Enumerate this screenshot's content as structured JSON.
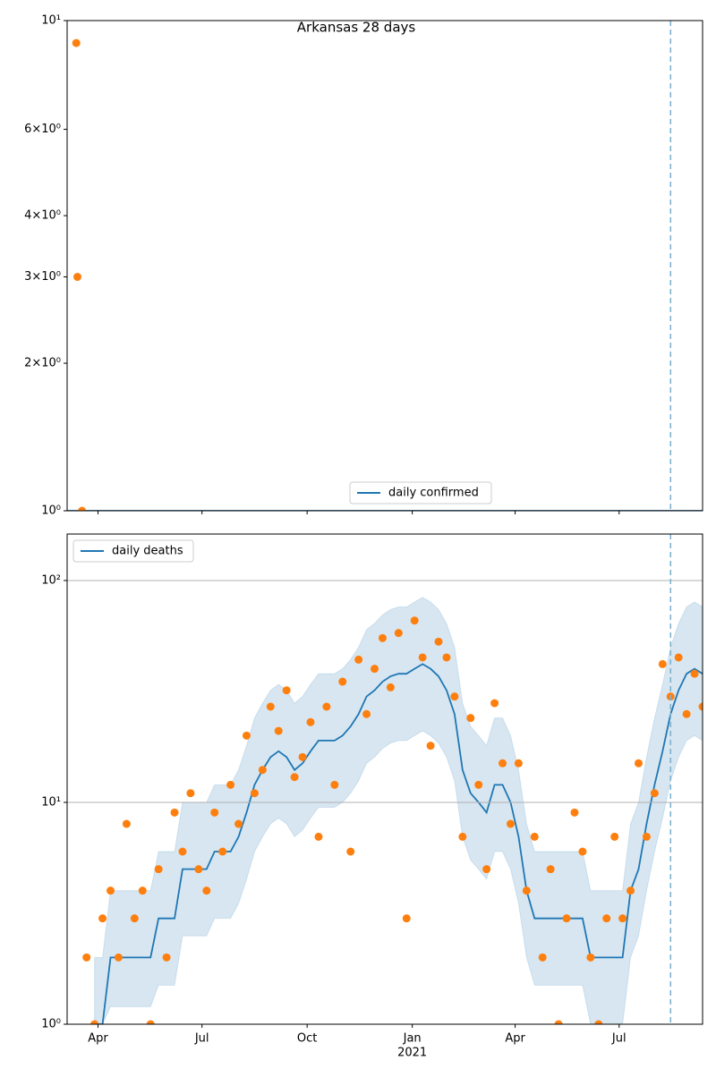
{
  "chart_data": [
    {
      "type": "scatter",
      "title": "Arkansas 28 days",
      "log_y": true,
      "grid": false,
      "legend": "lower center",
      "ylim": [
        1,
        10
      ],
      "yticks": [
        {
          "value": 1,
          "label": "10⁰"
        },
        {
          "value": 2,
          "label": "2×10⁰"
        },
        {
          "value": 3,
          "label": "3×10⁰"
        },
        {
          "value": 4,
          "label": "4×10⁰"
        },
        {
          "value": 6,
          "label": "6×10⁰"
        },
        {
          "value": 10,
          "label": "10¹"
        }
      ],
      "vline": "2021-08-15",
      "series": [
        {
          "name": "daily confirmed",
          "kind": "line",
          "color": "#1f77b4",
          "x": [
            "2020-03-05",
            "2021-09-12"
          ],
          "values": [
            1,
            1
          ]
        },
        {
          "kind": "scatter",
          "color": "#ff7f0e",
          "x": [
            "2020-03-13",
            "2020-03-14",
            "2020-03-18"
          ],
          "values": [
            9,
            3,
            1
          ]
        }
      ]
    },
    {
      "type": "scatter",
      "log_y": true,
      "grid": true,
      "legend": "upper left",
      "xlim": [
        "2020-03-05",
        "2021-09-12"
      ],
      "xticks": [
        {
          "value": "2020-04-01",
          "label": "Apr"
        },
        {
          "value": "2020-07-01",
          "label": "Jul"
        },
        {
          "value": "2020-10-01",
          "label": "Oct"
        },
        {
          "value": "2021-01-01",
          "label": "Jan"
        },
        {
          "value": "2021-04-01",
          "label": "Apr"
        },
        {
          "value": "2021-07-01",
          "label": "Jul"
        }
      ],
      "x_year_label": "2021",
      "ylim": [
        1,
        162
      ],
      "yticks": [
        {
          "value": 1,
          "label": "10⁰"
        },
        {
          "value": 10,
          "label": "10¹"
        },
        {
          "value": 100,
          "label": "10²"
        }
      ],
      "vline": "2021-08-15",
      "x": [
        "2020-03-22",
        "2020-03-29",
        "2020-04-05",
        "2020-04-12",
        "2020-04-19",
        "2020-04-26",
        "2020-05-03",
        "2020-05-10",
        "2020-05-17",
        "2020-05-24",
        "2020-05-31",
        "2020-06-07",
        "2020-06-14",
        "2020-06-21",
        "2020-06-28",
        "2020-07-05",
        "2020-07-12",
        "2020-07-19",
        "2020-07-26",
        "2020-08-02",
        "2020-08-09",
        "2020-08-16",
        "2020-08-23",
        "2020-08-30",
        "2020-09-06",
        "2020-09-13",
        "2020-09-20",
        "2020-09-27",
        "2020-10-04",
        "2020-10-11",
        "2020-10-18",
        "2020-10-25",
        "2020-11-01",
        "2020-11-08",
        "2020-11-15",
        "2020-11-22",
        "2020-11-29",
        "2020-12-06",
        "2020-12-13",
        "2020-12-20",
        "2020-12-27",
        "2021-01-03",
        "2021-01-10",
        "2021-01-17",
        "2021-01-24",
        "2021-01-31",
        "2021-02-07",
        "2021-02-14",
        "2021-02-21",
        "2021-02-28",
        "2021-03-07",
        "2021-03-14",
        "2021-03-21",
        "2021-03-28",
        "2021-04-04",
        "2021-04-11",
        "2021-04-18",
        "2021-04-25",
        "2021-05-02",
        "2021-05-09",
        "2021-05-16",
        "2021-05-23",
        "2021-05-30",
        "2021-06-06",
        "2021-06-13",
        "2021-06-20",
        "2021-06-27",
        "2021-07-04",
        "2021-07-11",
        "2021-07-18",
        "2021-07-25",
        "2021-08-01",
        "2021-08-08",
        "2021-08-15",
        "2021-08-22",
        "2021-08-29",
        "2021-09-05",
        "2021-09-12"
      ],
      "band": {
        "color": "#1f77b4",
        "low": [
          null,
          1,
          1,
          1.2,
          1.2,
          1.2,
          1.2,
          1.2,
          1.2,
          1.5,
          1.5,
          1.5,
          2.5,
          2.5,
          2.5,
          2.5,
          3,
          3,
          3,
          3.5,
          4.5,
          6,
          7,
          8,
          8.5,
          8,
          7,
          7.5,
          8.5,
          9.5,
          9.5,
          9.5,
          10,
          11,
          12.5,
          15,
          16,
          17.5,
          18.5,
          19,
          19,
          20,
          21,
          20,
          18.5,
          16,
          12.5,
          7,
          5.5,
          5,
          4.5,
          6,
          6,
          5,
          3.5,
          2,
          1.5,
          1.5,
          1.5,
          1.5,
          1.5,
          1.5,
          1.5,
          1,
          1,
          1,
          1,
          1,
          2,
          2.5,
          4,
          6,
          8.5,
          12.5,
          16,
          19,
          20,
          19
        ],
        "high": [
          null,
          2,
          2,
          4,
          4,
          4,
          4,
          4,
          4,
          6,
          6,
          6,
          10,
          10,
          10,
          10,
          12,
          12,
          12,
          14,
          18,
          24,
          28,
          32,
          34,
          32,
          28,
          30,
          34,
          38,
          38,
          38,
          40,
          44,
          50,
          60,
          64,
          70,
          74,
          76,
          76,
          80,
          84,
          80,
          74,
          64,
          50,
          28,
          22,
          20,
          18,
          24,
          24,
          20,
          14,
          8,
          6,
          6,
          6,
          6,
          6,
          6,
          6,
          4,
          4,
          4,
          4,
          4,
          8,
          10,
          16,
          24,
          34,
          50,
          64,
          76,
          80,
          76
        ]
      },
      "series": [
        {
          "name": "daily deaths",
          "kind": "line",
          "color": "#1f77b4",
          "values": [
            null,
            1,
            1,
            2,
            2,
            2,
            2,
            2,
            2,
            3,
            3,
            3,
            5,
            5,
            5,
            5,
            6,
            6,
            6,
            7,
            9,
            12,
            14,
            16,
            17,
            16,
            14,
            15,
            17,
            19,
            19,
            19,
            20,
            22,
            25,
            30,
            32,
            35,
            37,
            38,
            38,
            40,
            42,
            40,
            37,
            32,
            25,
            14,
            11,
            10,
            9,
            12,
            12,
            10,
            7,
            4,
            3,
            3,
            3,
            3,
            3,
            3,
            3,
            2,
            2,
            2,
            2,
            2,
            4,
            5,
            8,
            12,
            17,
            25,
            32,
            38,
            40,
            38
          ]
        },
        {
          "kind": "scatter",
          "color": "#ff7f0e",
          "values": [
            2,
            1,
            3,
            4,
            2,
            8,
            3,
            4,
            1,
            5,
            2,
            9,
            6,
            11,
            5,
            4,
            9,
            6,
            12,
            8,
            20,
            11,
            14,
            27,
            21,
            32,
            13,
            16,
            23,
            7,
            27,
            12,
            35,
            6,
            44,
            25,
            40,
            55,
            33,
            58,
            3,
            66,
            45,
            18,
            53,
            45,
            30,
            7,
            24,
            12,
            5,
            28,
            15,
            8,
            15,
            4,
            7,
            2,
            5,
            1,
            3,
            9,
            6,
            2,
            1,
            3,
            7,
            3,
            4,
            15,
            7,
            11,
            42,
            30,
            45,
            25,
            38,
            27
          ]
        }
      ]
    }
  ]
}
